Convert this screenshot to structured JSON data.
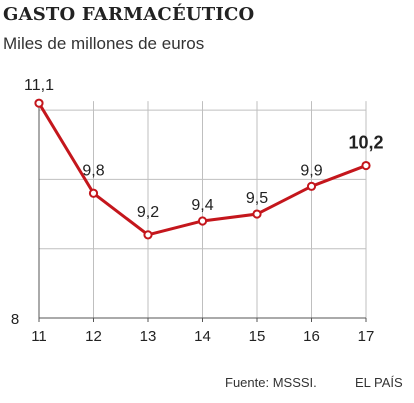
{
  "chart_data": {
    "type": "line",
    "title": "GASTO FARMACÉUTICO",
    "subtitle": "Miles de millones de euros",
    "categories": [
      "11",
      "12",
      "13",
      "14",
      "15",
      "16",
      "17"
    ],
    "series": [
      {
        "values": [
          11.1,
          9.8,
          9.2,
          9.4,
          9.5,
          9.9,
          10.2
        ],
        "data_labels": [
          "11,1",
          "9,8",
          "9,2",
          "9,4",
          "9,5",
          "9,9",
          "10,2"
        ],
        "highlight_last": true
      }
    ],
    "y_axis": {
      "min": 8,
      "max": 11.1,
      "labeled_ticks": [
        "8"
      ],
      "gridlines": [
        9,
        10,
        11
      ]
    },
    "grid": true,
    "colors": {
      "line": "#c4161c",
      "marker_fill": "#ffffff",
      "grid": "#bfbfbf",
      "axis": "#555555"
    }
  },
  "footer": {
    "source": "Fuente: MSSSI.",
    "publisher": "EL PAÍS"
  }
}
